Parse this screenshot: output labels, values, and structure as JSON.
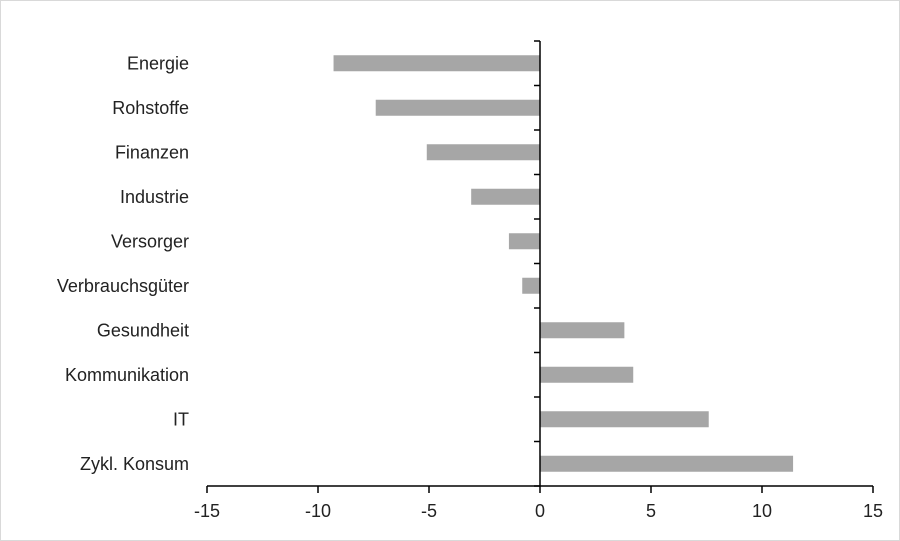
{
  "chart_data": {
    "type": "bar",
    "orientation": "horizontal",
    "categories": [
      "Energie",
      "Rohstoffe",
      "Finanzen",
      "Industrie",
      "Versorger",
      "Verbrauchsgüter",
      "Gesundheit",
      "Kommunikation",
      "IT",
      "Zykl. Konsum"
    ],
    "values": [
      -9.3,
      -7.4,
      -5.1,
      -3.1,
      -1.4,
      -0.8,
      3.8,
      4.2,
      7.6,
      11.4
    ],
    "xlim": [
      -15,
      15
    ],
    "xticks": [
      "-15",
      "-10",
      "-5",
      "0",
      "5",
      "10",
      "15"
    ],
    "title": "",
    "xlabel": "",
    "ylabel": "",
    "grid": false,
    "legend": "none",
    "bar_color": "#a6a6a6",
    "axis_color": "#000000"
  }
}
